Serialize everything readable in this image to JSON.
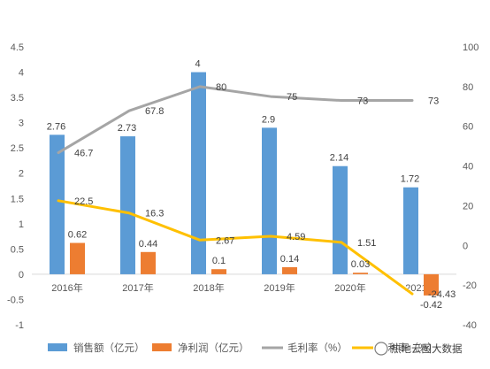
{
  "chart_data": {
    "type": "bar",
    "categories": [
      "2016年",
      "2017年",
      "2018年",
      "2019年",
      "2020年",
      "2021年"
    ],
    "series": [
      {
        "name": "销售额（亿元）",
        "type": "bar",
        "axis": "left",
        "color": "#5B9BD5",
        "values": [
          2.76,
          2.73,
          4,
          2.9,
          2.14,
          1.72
        ],
        "labels": [
          "2.76",
          "2.73",
          "4",
          "2.9",
          "2.14",
          "1.72"
        ]
      },
      {
        "name": "净利润（亿元）",
        "type": "bar",
        "axis": "left",
        "color": "#ED7D31",
        "values": [
          0.62,
          0.44,
          0.1,
          0.14,
          0.03,
          -0.42
        ],
        "labels": [
          "0.62",
          "0.44",
          "0.1",
          "0.14",
          "0.03",
          "-0.42"
        ]
      },
      {
        "name": "毛利率（%）",
        "type": "line",
        "axis": "right",
        "color": "#A5A5A5",
        "values": [
          46.7,
          67.8,
          80,
          75,
          73,
          73
        ],
        "labels": [
          "46.7",
          "67.8",
          "80",
          "75",
          "73",
          "73"
        ]
      },
      {
        "name": "净利率（%）",
        "type": "line",
        "axis": "right",
        "color": "#FFC000",
        "values": [
          22.5,
          16.3,
          2.67,
          4.59,
          1.51,
          -24.43
        ],
        "labels": [
          "22.5",
          "16.3",
          "2.67",
          "4.59",
          "1.51",
          "-24.43"
        ]
      }
    ],
    "y_left": {
      "min": -1,
      "max": 4.5,
      "step": 0.5,
      "tick_labels": [
        "-1",
        "-0.5",
        "0",
        "0.5",
        "1",
        "1.5",
        "2",
        "2.5",
        "3",
        "3.5",
        "4",
        "4.5"
      ]
    },
    "y_right": {
      "min": -40,
      "max": 100,
      "step": 20,
      "tick_labels": [
        "-40",
        "-20",
        "0",
        "20",
        "40",
        "60",
        "80",
        "100"
      ]
    },
    "grid": false,
    "legend_position": "bottom"
  },
  "watermark": "热地云图大数据"
}
